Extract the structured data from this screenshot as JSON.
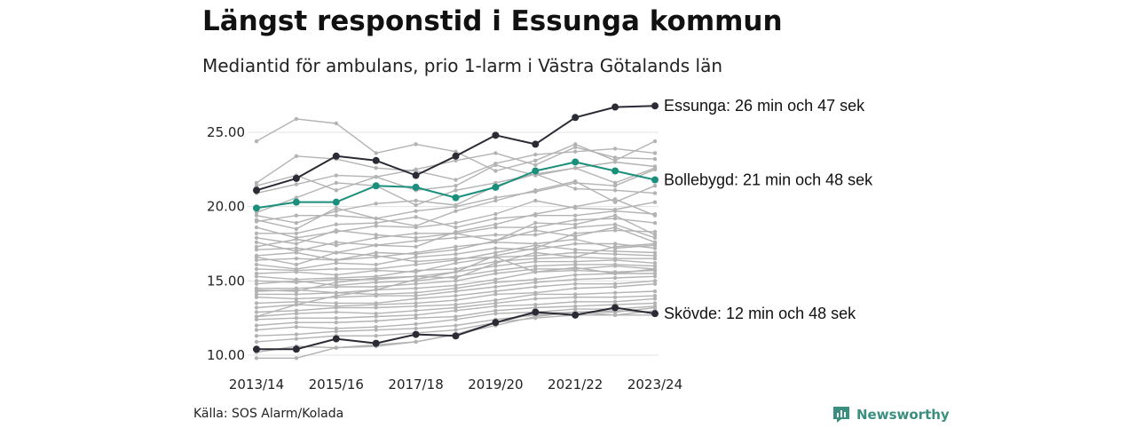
{
  "title": "Längst responstid i Essunga kommun",
  "subtitle": "Mediantid för ambulans, prio 1-larm i Västra Götalands län",
  "source": "Källa: SOS Alarm/Kolada",
  "brand": {
    "name": "Newsworthy",
    "icon": "chart-bubble-icon",
    "color": "#3a8f7f"
  },
  "chart_data": {
    "type": "line",
    "x": [
      "2013/14",
      "2014/15",
      "2015/16",
      "2016/17",
      "2017/18",
      "2018/19",
      "2019/20",
      "2020/21",
      "2021/22",
      "2022/23",
      "2023/24"
    ],
    "x_tick_labels": [
      "2013/14",
      "2015/16",
      "2017/18",
      "2019/20",
      "2021/22",
      "2023/24"
    ],
    "y_ticks": [
      10.0,
      15.0,
      20.0,
      25.0
    ],
    "y_tick_labels": [
      "10.00",
      "15.00",
      "20.00",
      "25.00"
    ],
    "ylim": [
      9.7,
      27.0
    ],
    "grid": "horizontal",
    "highlighted": [
      {
        "name": "Essunga",
        "label": "Essunga: 26 min och 47 sek",
        "color": "#2b2b35",
        "values": [
          21.1,
          21.9,
          23.4,
          23.1,
          22.1,
          23.4,
          24.8,
          24.2,
          26.0,
          26.7,
          26.78
        ]
      },
      {
        "name": "Bollebygd",
        "label": "Bollebygd: 21 min och 48 sek",
        "color": "#1a8f7c",
        "values": [
          19.9,
          20.3,
          20.3,
          21.4,
          21.3,
          20.6,
          21.3,
          22.4,
          23.0,
          22.4,
          21.8
        ]
      },
      {
        "name": "Skövde",
        "label": "Skövde: 12 min och 48 sek",
        "color": "#2b2b35",
        "values": [
          10.4,
          10.4,
          11.1,
          10.8,
          11.4,
          11.3,
          12.2,
          12.9,
          12.7,
          13.2,
          12.8
        ]
      }
    ],
    "background_series_color": "#b3b3b3",
    "background_series": [
      [
        24.4,
        25.9,
        25.6,
        23.6,
        24.2,
        23.7,
        22.4,
        23.1,
        24.2,
        23.1,
        24.4
      ],
      [
        21.6,
        23.4,
        23.2,
        22.6,
        22.4,
        21.8,
        22.9,
        23.5,
        23.7,
        23.9,
        23.6
      ],
      [
        21.4,
        22.1,
        21.1,
        22.0,
        22.5,
        23.1,
        23.6,
        22.8,
        24.0,
        23.3,
        23.2
      ],
      [
        20.9,
        21.5,
        22.1,
        22.0,
        21.1,
        21.4,
        22.8,
        22.1,
        22.6,
        23.0,
        22.7
      ],
      [
        19.6,
        20.6,
        21.6,
        21.4,
        20.1,
        21.1,
        21.6,
        22.2,
        22.6,
        21.6,
        22.6
      ],
      [
        19.4,
        18.9,
        19.7,
        20.2,
        20.4,
        20.1,
        21.4,
        22.2,
        21.2,
        21.1,
        20.9
      ],
      [
        19.1,
        18.5,
        19.9,
        19.2,
        18.7,
        19.7,
        20.4,
        21.1,
        21.7,
        20.3,
        21.4
      ],
      [
        18.6,
        17.9,
        18.3,
        18.7,
        18.6,
        18.9,
        19.5,
        20.4,
        19.9,
        19.8,
        20.3
      ],
      [
        18.2,
        18.2,
        18.8,
        18.9,
        19.3,
        18.6,
        19.2,
        19.4,
        19.4,
        19.7,
        19.5
      ],
      [
        17.9,
        17.5,
        18.4,
        18.1,
        17.9,
        18.2,
        18.6,
        18.6,
        19.1,
        19.2,
        18.9
      ],
      [
        17.3,
        17.8,
        17.4,
        17.9,
        18.2,
        18.2,
        17.7,
        18.9,
        18.8,
        19.4,
        18.1
      ],
      [
        17.1,
        17.2,
        16.9,
        17.4,
        17.7,
        17.9,
        18.1,
        18.1,
        18.6,
        18.8,
        17.9
      ],
      [
        16.7,
        16.9,
        16.4,
        16.9,
        16.8,
        17.1,
        17.7,
        18.4,
        18.0,
        18.6,
        17.6
      ],
      [
        16.4,
        16.5,
        16.4,
        16.6,
        16.9,
        17.3,
        17.6,
        17.5,
        17.8,
        17.2,
        17.4
      ],
      [
        16.1,
        15.8,
        16.2,
        16.1,
        16.6,
        16.8,
        17.2,
        17.1,
        17.5,
        17.5,
        17.2
      ],
      [
        15.8,
        15.7,
        15.8,
        15.8,
        16.1,
        16.4,
        16.9,
        17.4,
        17.1,
        17.0,
        16.9
      ],
      [
        15.5,
        15.6,
        15.4,
        15.7,
        15.6,
        16.2,
        16.6,
        16.7,
        16.9,
        16.8,
        16.7
      ],
      [
        15.3,
        15.1,
        15.2,
        15.3,
        15.7,
        15.8,
        16.3,
        16.5,
        16.6,
        16.5,
        16.5
      ],
      [
        15.0,
        14.9,
        15.1,
        15.1,
        15.3,
        15.6,
        16.0,
        16.3,
        16.3,
        16.4,
        16.2
      ],
      [
        14.8,
        15.0,
        14.7,
        14.9,
        15.0,
        15.3,
        15.7,
        16.0,
        16.1,
        16.1,
        16.0
      ],
      [
        14.5,
        14.5,
        14.6,
        14.6,
        14.8,
        15.0,
        15.5,
        15.8,
        15.8,
        16.0,
        15.8
      ],
      [
        14.3,
        14.4,
        14.2,
        14.4,
        14.5,
        14.7,
        15.1,
        15.6,
        15.7,
        15.6,
        15.7
      ],
      [
        14.1,
        14.1,
        14.2,
        14.1,
        14.2,
        14.5,
        14.9,
        15.1,
        15.4,
        15.5,
        15.5
      ],
      [
        13.9,
        13.8,
        13.9,
        14.0,
        14.0,
        14.3,
        14.6,
        14.9,
        15.1,
        15.2,
        15.3
      ],
      [
        13.5,
        13.6,
        13.5,
        13.5,
        13.8,
        14.0,
        14.3,
        14.6,
        14.8,
        14.8,
        15.0
      ],
      [
        13.2,
        13.4,
        13.3,
        13.4,
        13.5,
        13.7,
        14.1,
        14.2,
        14.5,
        14.6,
        14.8
      ],
      [
        12.9,
        13.0,
        13.2,
        13.2,
        13.3,
        13.4,
        13.7,
        14.1,
        14.1,
        14.2,
        14.3
      ],
      [
        12.6,
        12.8,
        12.9,
        12.8,
        13.0,
        13.2,
        13.5,
        13.8,
        13.9,
        13.9,
        14.0
      ],
      [
        12.4,
        12.5,
        12.5,
        12.6,
        12.7,
        13.0,
        13.3,
        13.4,
        13.6,
        13.6,
        13.8
      ],
      [
        12.0,
        12.2,
        12.2,
        12.3,
        12.5,
        12.6,
        13.0,
        13.2,
        13.3,
        13.4,
        13.5
      ],
      [
        11.7,
        11.9,
        11.8,
        11.9,
        12.1,
        12.4,
        12.8,
        12.9,
        13.1,
        13.1,
        13.3
      ],
      [
        11.3,
        11.4,
        11.6,
        11.7,
        11.8,
        12.0,
        12.4,
        12.7,
        12.9,
        12.9,
        13.2
      ],
      [
        10.9,
        11.1,
        11.3,
        11.3,
        11.5,
        11.7,
        12.2,
        12.5,
        12.7,
        12.7,
        13.0
      ],
      [
        10.2,
        10.6,
        10.5,
        10.7,
        10.9,
        11.4,
        12.0,
        12.6,
        12.9,
        13.0,
        12.9
      ],
      [
        9.8,
        9.8,
        10.5,
        10.6,
        10.9,
        11.4,
        12.2,
        12.8,
        12.9,
        12.7,
        12.7
      ],
      [
        19.0,
        19.4,
        19.4,
        19.2,
        19.7,
        20.0,
        20.6,
        21.0,
        21.6,
        21.4,
        22.5
      ],
      [
        12.6,
        13.4,
        14.0,
        14.4,
        15.1,
        15.6,
        16.7,
        17.2,
        18.2,
        18.4,
        18.3
      ],
      [
        17.6,
        17.0,
        17.6,
        17.4,
        17.3,
        18.3,
        18.8,
        19.5,
        20.0,
        20.5,
        19.4
      ],
      [
        14.4,
        14.3,
        14.9,
        15.2,
        15.3,
        15.2,
        16.2,
        16.9,
        16.6,
        17.3,
        17.5
      ],
      [
        16.6,
        16.1,
        16.9,
        16.7,
        16.3,
        16.5,
        16.6,
        15.6,
        15.9,
        15.5,
        15.8
      ]
    ]
  }
}
